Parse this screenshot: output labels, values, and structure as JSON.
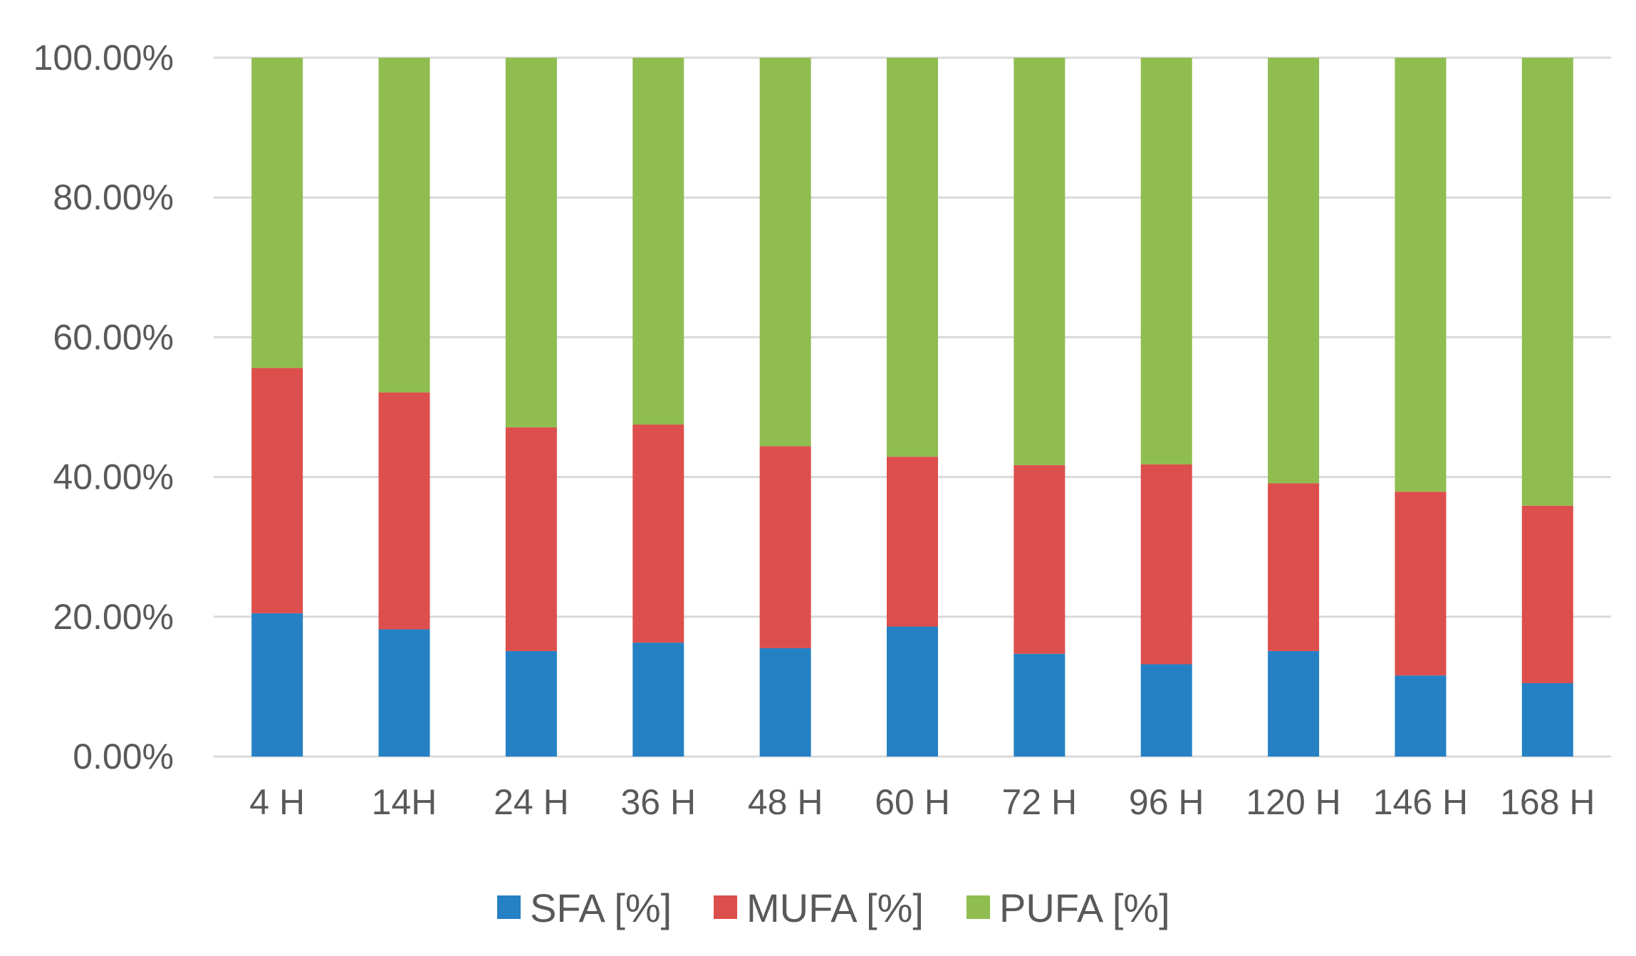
{
  "chart_data": {
    "type": "bar",
    "stacked": true,
    "categories": [
      "4 H",
      "14H",
      "24 H",
      "36 H",
      "48 H",
      "60 H",
      "72 H",
      "96 H",
      "120 H",
      "146 H",
      "168 H"
    ],
    "series": [
      {
        "name": "SFA [%]",
        "color": "#2581c4",
        "values": [
          20.5,
          18.2,
          15.1,
          16.3,
          15.5,
          18.6,
          14.7,
          13.2,
          15.1,
          11.6,
          10.5
        ]
      },
      {
        "name": "MUFA [%]",
        "color": "#dd4f4c",
        "values": [
          35.1,
          33.9,
          32.0,
          31.2,
          28.9,
          24.3,
          27.0,
          28.6,
          24.0,
          26.3,
          25.4
        ]
      },
      {
        "name": "PUFA [%]",
        "color": "#8fbd50",
        "values": [
          44.4,
          47.9,
          52.9,
          52.5,
          55.6,
          57.1,
          58.3,
          58.2,
          60.9,
          62.1,
          64.1
        ]
      }
    ],
    "y_ticks": [
      "0.00%",
      "20.00%",
      "40.00%",
      "60.00%",
      "80.00%",
      "100.00%"
    ],
    "ylim": [
      0,
      100
    ],
    "grid": true,
    "legend_position": "bottom",
    "title": "",
    "xlabel": "",
    "ylabel": ""
  }
}
